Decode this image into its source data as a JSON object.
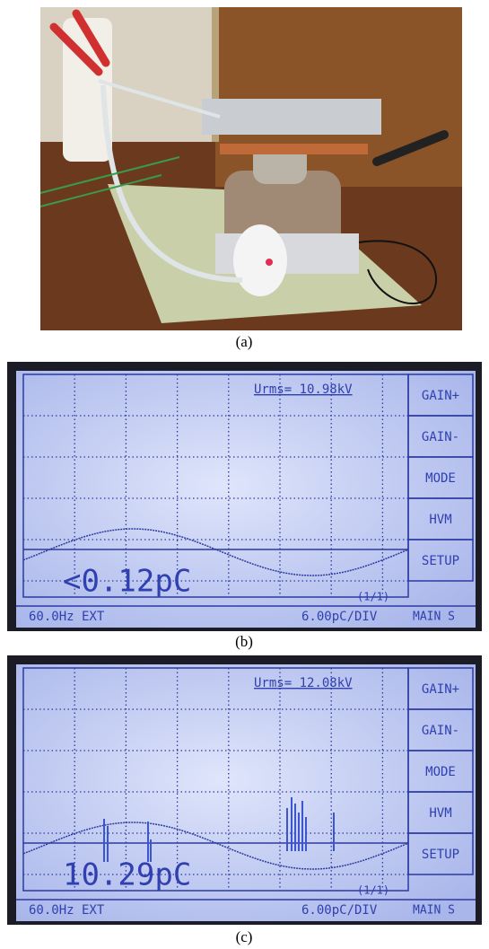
{
  "figure": {
    "panels": [
      {
        "label": "(a)"
      },
      {
        "label": "(b)",
        "screen": {
          "voltage": "Urms= 10.98kV",
          "buttons": [
            "GAIN+",
            "GAIN-",
            "MODE",
            "HVM",
            "SETUP"
          ],
          "charge": "<0.12pC",
          "page": "(1/1)",
          "scale": "6.00pC/DIV",
          "menu": "MAIN S",
          "status": "60.0Hz EXT"
        }
      },
      {
        "label": "(c)",
        "screen": {
          "voltage": "Urms= 12.08kV",
          "buttons": [
            "GAIN+",
            "GAIN-",
            "MODE",
            "HVM",
            "SETUP"
          ],
          "charge": "10.29pC",
          "page": "(1/1)",
          "scale": "6.00pC/DIV",
          "menu": "MAIN S",
          "status": "60.0Hz EXT"
        }
      }
    ]
  }
}
